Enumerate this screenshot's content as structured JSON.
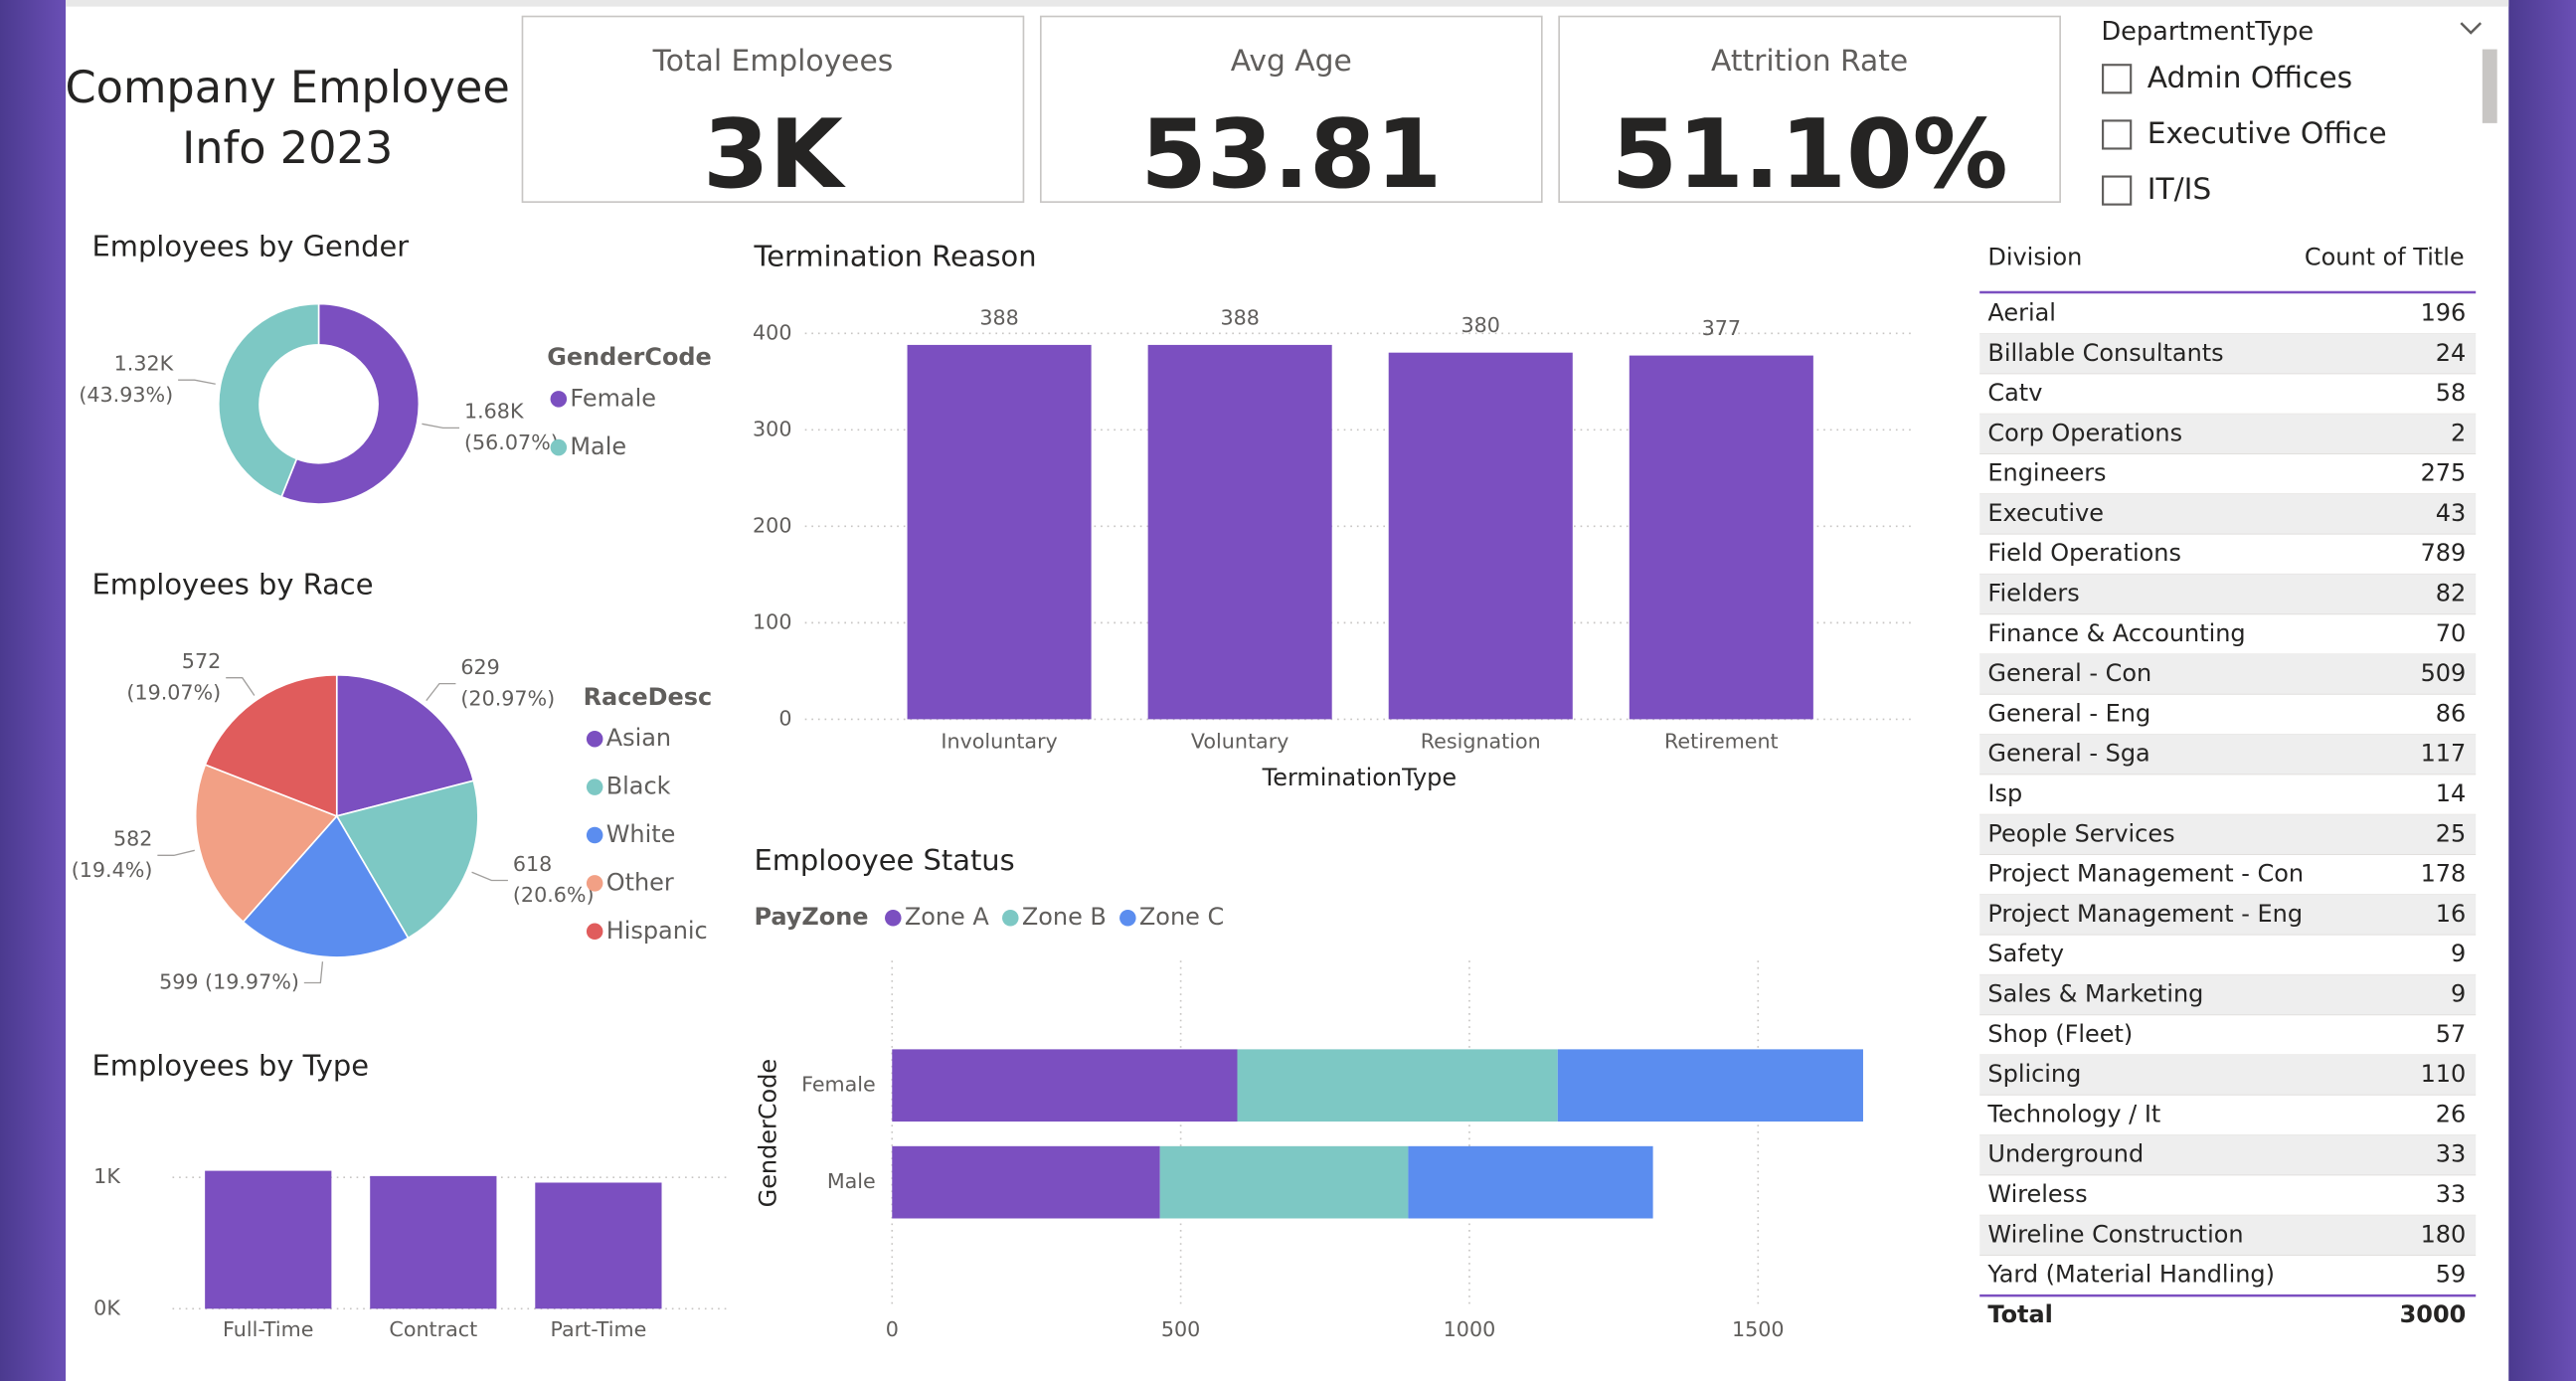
{
  "header": {
    "title": [
      "Company Employee",
      "Info 2023"
    ]
  },
  "cards": [
    {
      "label": "Total Employees",
      "value": "3K"
    },
    {
      "label": "Avg Age",
      "value": "53.81"
    },
    {
      "label": "Attrition Rate",
      "value": "51.10%"
    }
  ],
  "slicer": {
    "title": "DepartmentType",
    "items": [
      "Admin Offices",
      "Executive Office",
      "IT/IS"
    ]
  },
  "table": {
    "columns": [
      "Division",
      "Count of Title"
    ],
    "rows": [
      [
        "Aerial",
        196
      ],
      [
        "Billable Consultants",
        24
      ],
      [
        "Catv",
        58
      ],
      [
        "Corp Operations",
        2
      ],
      [
        "Engineers",
        275
      ],
      [
        "Executive",
        43
      ],
      [
        "Field Operations",
        789
      ],
      [
        "Fielders",
        82
      ],
      [
        "Finance & Accounting",
        70
      ],
      [
        "General - Con",
        509
      ],
      [
        "General - Eng",
        86
      ],
      [
        "General - Sga",
        117
      ],
      [
        "Isp",
        14
      ],
      [
        "People Services",
        25
      ],
      [
        "Project Management - Con",
        178
      ],
      [
        "Project Management - Eng",
        16
      ],
      [
        "Safety",
        9
      ],
      [
        "Sales & Marketing",
        9
      ],
      [
        "Shop (Fleet)",
        57
      ],
      [
        "Splicing",
        110
      ],
      [
        "Technology / It",
        26
      ],
      [
        "Underground",
        33
      ],
      [
        "Wireless",
        33
      ],
      [
        "Wireline Construction",
        180
      ],
      [
        "Yard (Material Handling)",
        59
      ]
    ],
    "total": [
      "Total",
      3000
    ]
  },
  "chart_data": [
    {
      "type": "pie",
      "donut": true,
      "title": "Employees by Gender",
      "legend_title": "GenderCode",
      "categories": [
        "Female",
        "Male"
      ],
      "values": [
        1682,
        1318
      ],
      "value_labels": [
        [
          "1.68K",
          "(56.07%)"
        ],
        [
          "1.32K",
          "(43.93%)"
        ]
      ],
      "colors": [
        "#7b4fc0",
        "#7dc8c4"
      ]
    },
    {
      "type": "pie",
      "donut": false,
      "title": "Employees by Race",
      "legend_title": "RaceDesc",
      "categories": [
        "Asian",
        "Black",
        "White",
        "Other",
        "Hispanic"
      ],
      "values": [
        629,
        618,
        599,
        582,
        572
      ],
      "value_labels": [
        [
          "629",
          "(20.97%)"
        ],
        [
          "618",
          "(20.6%)"
        ],
        [
          "599 (19.97%)"
        ],
        [
          "582",
          "(19.4%)"
        ],
        [
          "572",
          "(19.07%)"
        ]
      ],
      "colors": [
        "#7b4fc0",
        "#7dc8c4",
        "#5b8def",
        "#f2a085",
        "#e05c5c"
      ]
    },
    {
      "type": "bar",
      "title": "Employees by Type",
      "categories": [
        "Full-Time",
        "Contract",
        "Part-Time"
      ],
      "values": [
        1050,
        1010,
        960
      ],
      "color": "#7b4fc0",
      "ylim": [
        0,
        1100
      ],
      "yticks": [
        {
          "value": 0,
          "label": "0K"
        },
        {
          "value": 1000,
          "label": "1K"
        }
      ],
      "grid": true
    },
    {
      "type": "bar",
      "title": "Termination Reason",
      "xlabel": "TerminationType",
      "categories": [
        "Involuntary",
        "Voluntary",
        "Resignation",
        "Retirement"
      ],
      "values": [
        388,
        388,
        380,
        377
      ],
      "color": "#7b4fc0",
      "ylim": [
        0,
        400
      ],
      "yticks": [
        0,
        100,
        200,
        300,
        400
      ],
      "grid": true,
      "data_labels": true
    },
    {
      "type": "stacked_barh",
      "title": "Emplooyee Status",
      "legend_title": "PayZone",
      "ylabel": "GenderCode",
      "categories": [
        "Female",
        "Male"
      ],
      "series": [
        {
          "name": "Zone A",
          "color": "#7b4fc0",
          "values": [
            598,
            464
          ]
        },
        {
          "name": "Zone B",
          "color": "#7dc8c4",
          "values": [
            555,
            430
          ]
        },
        {
          "name": "Zone C",
          "color": "#5b8def",
          "values": [
            529,
            424
          ]
        }
      ],
      "xlim": [
        0,
        1770
      ],
      "xticks": [
        0,
        500,
        1000,
        1500
      ],
      "grid": true
    }
  ]
}
